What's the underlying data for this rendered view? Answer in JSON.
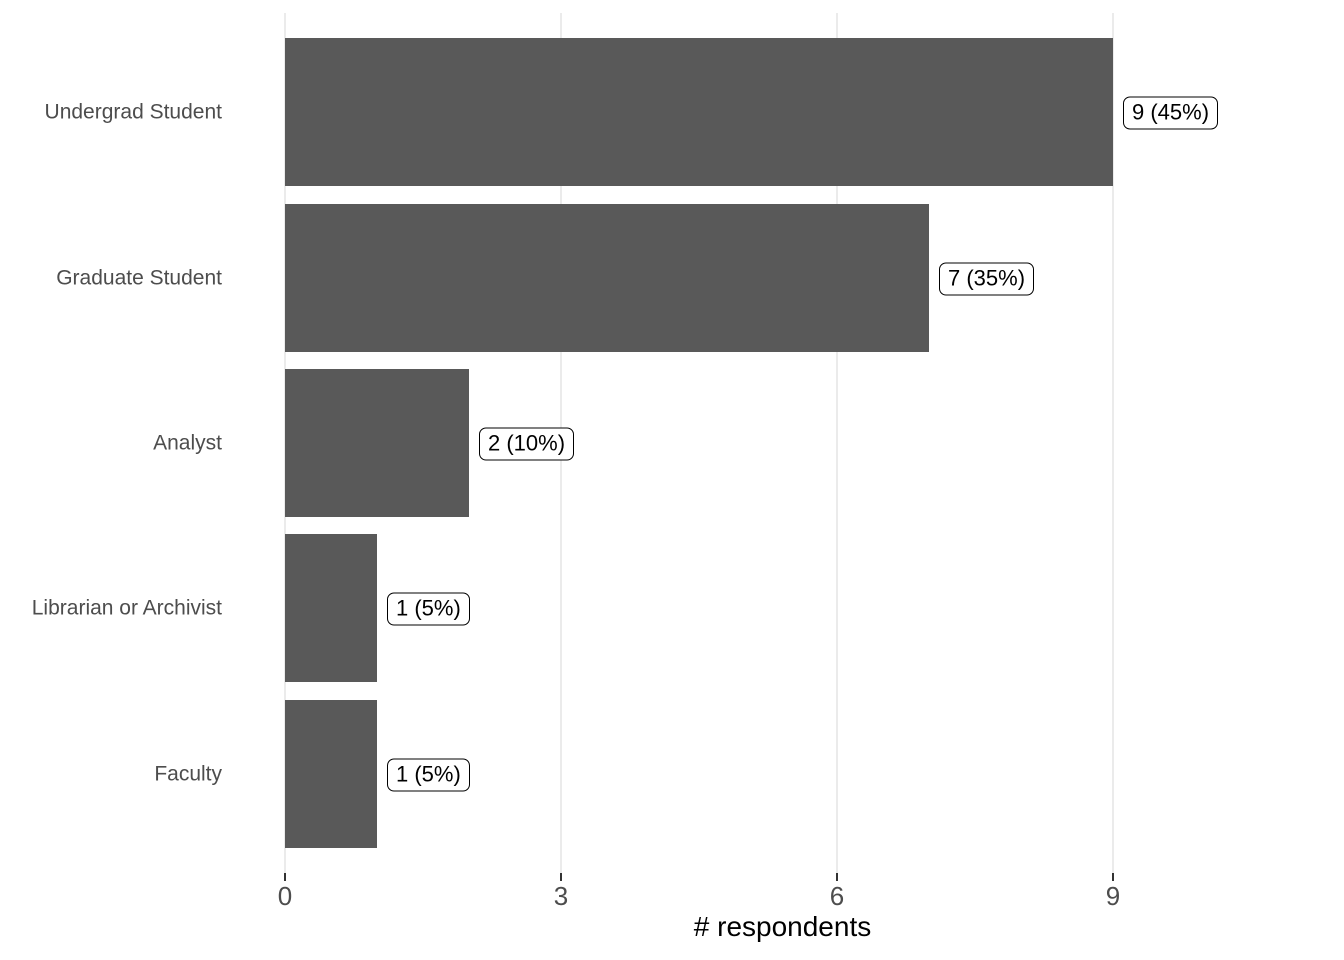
{
  "chart_data": {
    "type": "bar",
    "orientation": "horizontal",
    "title": "",
    "xlabel": "# respondents",
    "ylabel": "",
    "categories": [
      "Undergrad Student",
      "Graduate Student",
      "Analyst",
      "Librarian or Archivist",
      "Faculty"
    ],
    "values": [
      9,
      7,
      2,
      1,
      1
    ],
    "value_labels": [
      "9 (45%)",
      "7 (35%)",
      "2 (10%)",
      "1 (5%)",
      "1 (5%)"
    ],
    "percentages": [
      45,
      35,
      10,
      5,
      5
    ],
    "x_ticks": [
      "0",
      "3",
      "6",
      "9"
    ],
    "x_tick_values": [
      0,
      3,
      6,
      9
    ],
    "xlim": [
      0,
      10.8
    ],
    "grid": "vertical-major-only",
    "legend": "none",
    "colors": {
      "bar": "#595959",
      "gridline": "#EBEBEB",
      "axis_text": "#4D4D4D",
      "tick_mark": "#333333",
      "axis_title": "#000000",
      "label_box_bg": "#FFFFFF",
      "label_box_border": "#000000",
      "label_text": "#000000",
      "background": "#FFFFFF"
    }
  }
}
